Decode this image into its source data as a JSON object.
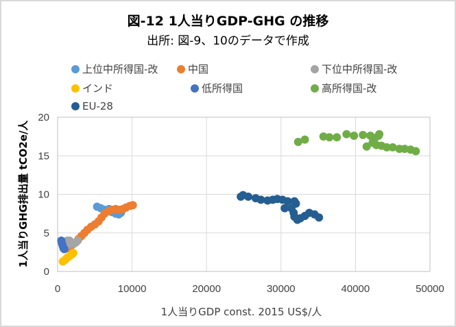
{
  "chart_data": {
    "type": "scatter",
    "title": "図-12  1人当りGDP-GHG の推移",
    "subtitle": "出所: 図-9、10のデータで作成",
    "xlabel": "1人当りGDP   const. 2015 US$/人",
    "ylabel": "1人当りGHG排出量  tCO2e/人",
    "xlim": [
      0,
      50000
    ],
    "ylim": [
      0,
      20
    ],
    "xticks": [
      "0",
      "10000",
      "20000",
      "30000",
      "40000",
      "50000"
    ],
    "yticks": [
      "0",
      "5",
      "10",
      "15",
      "20"
    ],
    "grid": true,
    "legend_position": "top",
    "series": [
      {
        "name": "上位中所得国-改",
        "color": "#5b9bd5",
        "points": [
          [
            5300,
            8.4
          ],
          [
            5800,
            8.2
          ],
          [
            6300,
            8.0
          ],
          [
            6800,
            7.9
          ],
          [
            7300,
            7.7
          ],
          [
            7800,
            7.5
          ],
          [
            8200,
            7.4
          ],
          [
            8500,
            7.6
          ],
          [
            6900,
            8.1
          ]
        ]
      },
      {
        "name": "中国",
        "color": "#ed7d31",
        "points": [
          [
            1500,
            3.0
          ],
          [
            1900,
            3.4
          ],
          [
            2300,
            3.7
          ],
          [
            2800,
            4.2
          ],
          [
            3200,
            4.6
          ],
          [
            3600,
            5.0
          ],
          [
            4000,
            5.4
          ],
          [
            4500,
            5.8
          ],
          [
            5000,
            6.1
          ],
          [
            5500,
            6.5
          ],
          [
            5900,
            7.0
          ],
          [
            6300,
            7.5
          ],
          [
            6800,
            7.8
          ],
          [
            7300,
            8.0
          ],
          [
            7800,
            8.1
          ],
          [
            8300,
            8.0
          ],
          [
            8800,
            8.1
          ],
          [
            9200,
            8.3
          ],
          [
            9700,
            8.5
          ],
          [
            10100,
            8.6
          ]
        ]
      },
      {
        "name": "下位中所得国-改",
        "color": "#a5a5a5",
        "points": [
          [
            1000,
            3.8
          ],
          [
            1300,
            4.0
          ],
          [
            1600,
            4.0
          ],
          [
            1900,
            3.7
          ],
          [
            2200,
            3.6
          ],
          [
            2500,
            3.8
          ],
          [
            2700,
            4.0
          ],
          [
            1400,
            3.4
          ]
        ]
      },
      {
        "name": "インド",
        "color": "#ffc000",
        "points": [
          [
            700,
            1.3
          ],
          [
            1000,
            1.5
          ],
          [
            1300,
            1.8
          ],
          [
            1600,
            2.0
          ],
          [
            1900,
            2.2
          ],
          [
            2100,
            2.4
          ]
        ]
      },
      {
        "name": "低所得国",
        "color": "#4472c4",
        "points": [
          [
            500,
            4.0
          ],
          [
            600,
            3.6
          ],
          [
            700,
            3.3
          ],
          [
            800,
            3.0
          ],
          [
            900,
            2.9
          ]
        ]
      },
      {
        "name": "高所得国-改",
        "color": "#70ad47",
        "points": [
          [
            32300,
            16.8
          ],
          [
            33200,
            17.1
          ],
          [
            35700,
            17.5
          ],
          [
            36500,
            17.4
          ],
          [
            37500,
            17.4
          ],
          [
            38800,
            17.8
          ],
          [
            39800,
            17.6
          ],
          [
            41000,
            17.7
          ],
          [
            42000,
            17.6
          ],
          [
            43100,
            17.6
          ],
          [
            43200,
            17.8
          ],
          [
            41500,
            16.2
          ],
          [
            42300,
            16.7
          ],
          [
            42800,
            16.4
          ],
          [
            43500,
            16.3
          ],
          [
            44200,
            16.1
          ],
          [
            45000,
            16.1
          ],
          [
            45900,
            15.9
          ],
          [
            46600,
            15.9
          ],
          [
            47400,
            15.8
          ],
          [
            48100,
            15.6
          ],
          [
            42600,
            17.3
          ]
        ]
      },
      {
        "name": "EU-28",
        "color": "#255e91",
        "points": [
          [
            24600,
            9.7
          ],
          [
            24900,
            9.9
          ],
          [
            25600,
            9.7
          ],
          [
            26600,
            9.5
          ],
          [
            27300,
            9.3
          ],
          [
            28200,
            9.2
          ],
          [
            28900,
            9.3
          ],
          [
            29500,
            9.4
          ],
          [
            30200,
            9.3
          ],
          [
            30900,
            9.1
          ],
          [
            31800,
            9.1
          ],
          [
            32000,
            8.8
          ],
          [
            31400,
            8.2
          ],
          [
            30500,
            8.2
          ],
          [
            31700,
            7.6
          ],
          [
            31800,
            7.1
          ],
          [
            32200,
            6.7
          ],
          [
            32600,
            6.9
          ],
          [
            33200,
            7.2
          ],
          [
            33800,
            7.6
          ],
          [
            34500,
            7.4
          ],
          [
            35100,
            7.0
          ]
        ]
      }
    ]
  }
}
